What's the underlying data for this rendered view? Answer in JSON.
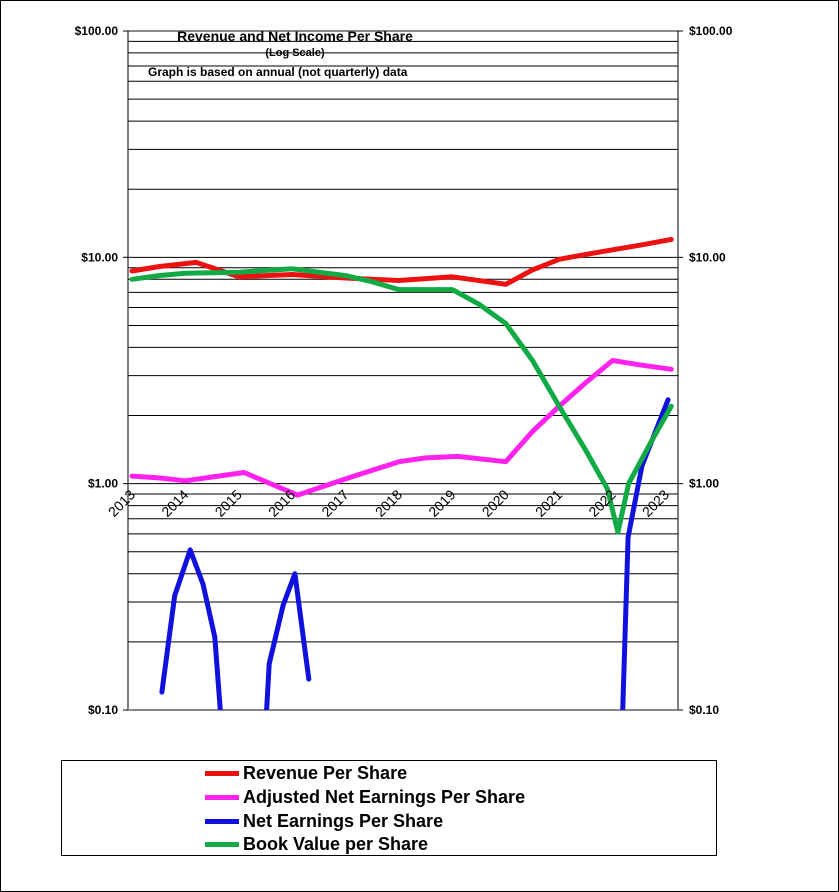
{
  "chart_data": {
    "type": "line",
    "title": "Revenue  and Net Income  Per Share",
    "subtitle": "(Log  Scale)",
    "annotation": "Graph is based on annual (not quarterly) data",
    "yscale": "log",
    "ylim": [
      0.1,
      100
    ],
    "yticks": [
      "$100.00",
      "$10.00",
      "$1.00",
      "$0.10"
    ],
    "ytick_values": [
      100,
      10,
      1,
      0.1
    ],
    "xlim": [
      2013,
      2023
    ],
    "xticks": [
      "2013",
      "2014",
      "2015",
      "2016",
      "2017",
      "2018",
      "2019",
      "2020",
      "2021",
      "2022",
      "2023"
    ],
    "grid": true,
    "legend_position": "bottom",
    "series": [
      {
        "name": "Revenue Per Share",
        "color": "#ee1111",
        "x": [
          2013,
          2013.5,
          2014.2,
          2015,
          2016,
          2017,
          2018,
          2019,
          2020,
          2020.5,
          2021,
          2021.5,
          2022,
          2022.5,
          2023.1
        ],
        "y": [
          8.7,
          9.1,
          9.5,
          8.2,
          8.4,
          8.1,
          7.9,
          8.2,
          7.6,
          8.8,
          9.8,
          10.3,
          10.8,
          11.3,
          12.0
        ]
      },
      {
        "name": "Adjusted Net Earnings Per Share",
        "color": "#ff22ee",
        "x": [
          2013,
          2013.5,
          2014,
          2014.5,
          2015.1,
          2016.1,
          2017,
          2018,
          2018.5,
          2019.1,
          2020,
          2020.5,
          2021,
          2021.5,
          2022,
          2022.5,
          2023.1
        ],
        "y": [
          1.08,
          1.06,
          1.03,
          1.07,
          1.12,
          0.89,
          1.05,
          1.25,
          1.3,
          1.32,
          1.25,
          1.7,
          2.2,
          2.8,
          3.5,
          3.35,
          3.2
        ]
      },
      {
        "name": "Net Earnings Per Share",
        "color": "#1111dd",
        "x": [
          2013.56,
          2013.8,
          2014.09,
          2014.33,
          2014.55,
          2014.75,
          null,
          2015.45,
          2015.57,
          2015.83,
          2016.05,
          2016.31,
          null,
          2022.15,
          2022.29,
          2022.55,
          2023.04
        ],
        "y": [
          0.12,
          0.32,
          0.51,
          0.36,
          0.21,
          0.05,
          null,
          0.05,
          0.16,
          0.29,
          0.4,
          0.137,
          null,
          0.05,
          0.58,
          1.2,
          2.35
        ]
      },
      {
        "name": "Book Value per Share",
        "color": "#11aa44",
        "x": [
          2013,
          2013.5,
          2014,
          2015,
          2016,
          2017,
          2017.5,
          2018,
          2019,
          2019.5,
          2020,
          2020.5,
          2021,
          2021.5,
          2021.9,
          2022.1,
          2022.3,
          2022.7,
          2023.1
        ],
        "y": [
          8.0,
          8.3,
          8.5,
          8.6,
          8.9,
          8.3,
          7.8,
          7.2,
          7.2,
          6.2,
          5.1,
          3.5,
          2.2,
          1.4,
          0.95,
          0.61,
          1.0,
          1.5,
          2.2
        ]
      }
    ]
  }
}
